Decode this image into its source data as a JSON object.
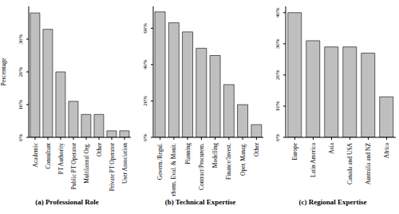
{
  "chart_data": [
    {
      "type": "bar",
      "title": "(a) Professional Role",
      "ylabel": "Percentage",
      "categories": [
        "Academic",
        "Consultant",
        "PT Authority",
        "Public PT Operator",
        "Multilateral Org.",
        "Other",
        "Private PT Operator",
        "User Association"
      ],
      "values": [
        38,
        33,
        20,
        11,
        7,
        7,
        2,
        2
      ],
      "color": "#bfbfbf",
      "ylim": [
        0,
        40
      ],
      "yticks": [
        {
          "value": 0,
          "label": "0%"
        },
        {
          "value": 10,
          "label": "10%"
        },
        {
          "value": 20,
          "label": "20%"
        },
        {
          "value": 30,
          "label": "30%"
        }
      ],
      "grid": false
    },
    {
      "type": "bar",
      "title": "(b) Technical Expertise",
      "categories": [
        "Govern./Regul.",
        "Perform. Eval. & Monit.",
        "Planning",
        "Contract/Procurem.",
        "Modelling",
        "Finance/Invest.",
        "Oper. Manag.",
        "Other"
      ],
      "values": [
        69,
        63,
        58,
        49,
        45,
        29,
        18,
        7
      ],
      "color": "#bfbfbf",
      "ylim": [
        0,
        72
      ],
      "yticks": [
        {
          "value": 0,
          "label": "0%"
        },
        {
          "value": 20,
          "label": "20%"
        },
        {
          "value": 40,
          "label": "40%"
        },
        {
          "value": 60,
          "label": "60%"
        }
      ],
      "grid": false
    },
    {
      "type": "bar",
      "title": "(c) Regional Expertise",
      "categories": [
        "Europe",
        "Latin America",
        "Asia",
        "Canada and USA",
        "Australia and NZ",
        "Africa"
      ],
      "values": [
        40,
        31,
        29,
        29,
        27,
        13
      ],
      "color": "#bfbfbf",
      "ylim": [
        0,
        42
      ],
      "yticks": [
        {
          "value": 0,
          "label": "0%"
        },
        {
          "value": 10,
          "label": "10%"
        },
        {
          "value": 20,
          "label": "20%"
        },
        {
          "value": 30,
          "label": "30%"
        },
        {
          "value": 40,
          "label": "40%"
        }
      ],
      "grid": false
    }
  ]
}
